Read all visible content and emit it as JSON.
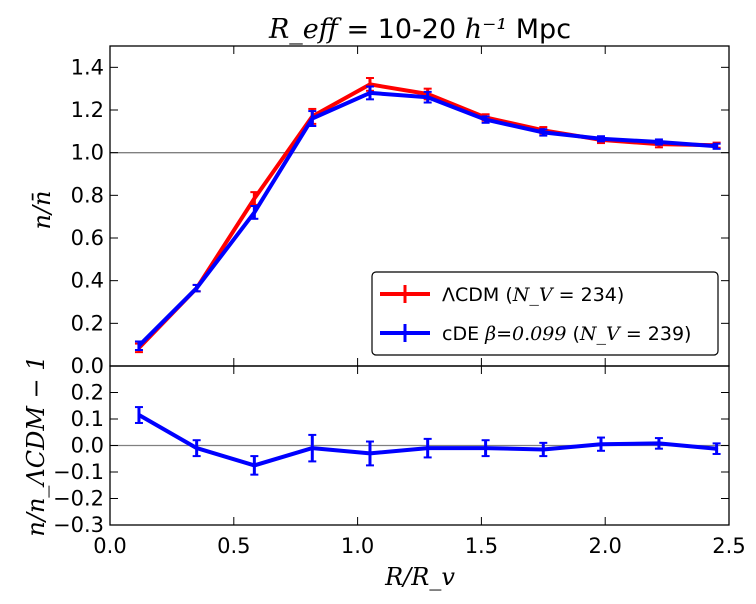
{
  "chart_data": [
    {
      "type": "line",
      "panel": "top",
      "title": {
        "math": "R_eff",
        "text": " = 10-20 ",
        "math2": "h⁻¹",
        "unit": " Mpc"
      },
      "xlabel": "R/R_v",
      "ylabel": "n/n̄",
      "xlim": [
        0.0,
        2.5
      ],
      "ylim": [
        0.0,
        1.5
      ],
      "yticks": [
        "0.0",
        "0.2",
        "0.4",
        "0.6",
        "0.8",
        "1.0",
        "1.2",
        "1.4"
      ],
      "ytick_values": [
        0.0,
        0.2,
        0.4,
        0.6,
        0.8,
        1.0,
        1.2,
        1.4
      ],
      "reference_line": 1.0,
      "legend_position": "lower-right",
      "series": [
        {
          "name": "ΛCDM",
          "legend_suffix": " = 234)",
          "legend_prefix": "(",
          "legend_math": "N_V",
          "color": "#ff0000",
          "x": [
            0.117,
            0.35,
            0.583,
            0.817,
            1.05,
            1.283,
            1.517,
            1.75,
            1.983,
            2.217,
            2.45
          ],
          "y": [
            0.085,
            0.365,
            0.785,
            1.17,
            1.32,
            1.275,
            1.165,
            1.105,
            1.06,
            1.04,
            1.035
          ],
          "err": [
            0.02,
            0.015,
            0.03,
            0.035,
            0.03,
            0.025,
            0.015,
            0.015,
            0.015,
            0.015,
            0.012
          ]
        },
        {
          "name": "cDE",
          "legend_math_beta": "β=0.099",
          "legend_prefix": "(",
          "legend_math": "N_V",
          "legend_suffix": " = 239)",
          "color": "#0000ff",
          "x": [
            0.117,
            0.35,
            0.583,
            0.817,
            1.05,
            1.283,
            1.517,
            1.75,
            1.983,
            2.217,
            2.45
          ],
          "y": [
            0.095,
            0.365,
            0.72,
            1.16,
            1.28,
            1.26,
            1.155,
            1.095,
            1.065,
            1.05,
            1.03
          ],
          "err": [
            0.02,
            0.015,
            0.03,
            0.035,
            0.03,
            0.025,
            0.015,
            0.015,
            0.012,
            0.012,
            0.012
          ]
        }
      ]
    },
    {
      "type": "line",
      "panel": "bottom",
      "xlabel": "R/R_v",
      "ylabel": "n/n_ΛCDM − 1",
      "xlim": [
        0.0,
        2.5
      ],
      "ylim": [
        -0.3,
        0.3
      ],
      "xticks": [
        "0.0",
        "0.5",
        "1.0",
        "1.5",
        "2.0",
        "2.5"
      ],
      "xtick_values": [
        0.0,
        0.5,
        1.0,
        1.5,
        2.0,
        2.5
      ],
      "yticks": [
        "−0.3",
        "−0.2",
        "−0.1",
        "0.0",
        "0.1",
        "0.2"
      ],
      "ytick_values": [
        -0.3,
        -0.2,
        -0.1,
        0.0,
        0.1,
        0.2
      ],
      "reference_line": 0.0,
      "series": [
        {
          "name": "cDE / ΛCDM − 1",
          "color": "#0000ff",
          "x": [
            0.117,
            0.35,
            0.583,
            0.817,
            1.05,
            1.283,
            1.517,
            1.75,
            1.983,
            2.217,
            2.45
          ],
          "y": [
            0.115,
            -0.01,
            -0.075,
            -0.01,
            -0.03,
            -0.01,
            -0.01,
            -0.015,
            0.005,
            0.008,
            -0.012
          ],
          "err": [
            0.03,
            0.03,
            0.035,
            0.05,
            0.045,
            0.035,
            0.03,
            0.025,
            0.025,
            0.02,
            0.02
          ]
        }
      ]
    }
  ]
}
